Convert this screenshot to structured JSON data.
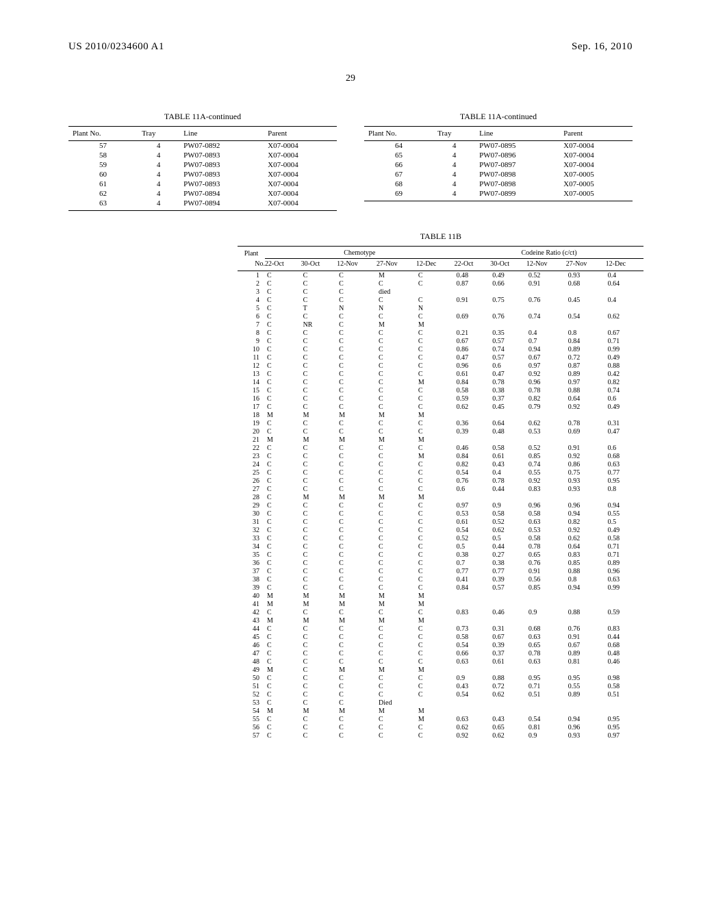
{
  "header": {
    "left": "US 2010/0234600 A1",
    "right": "Sep. 16, 2010"
  },
  "pageNumber": "29",
  "table11a": {
    "title": "TABLE 11A-continued",
    "columns": [
      "Plant No.",
      "Tray",
      "Line",
      "Parent"
    ],
    "left": [
      [
        "57",
        "4",
        "PW07-0892",
        "X07-0004"
      ],
      [
        "58",
        "4",
        "PW07-0893",
        "X07-0004"
      ],
      [
        "59",
        "4",
        "PW07-0893",
        "X07-0004"
      ],
      [
        "60",
        "4",
        "PW07-0893",
        "X07-0004"
      ],
      [
        "61",
        "4",
        "PW07-0893",
        "X07-0004"
      ],
      [
        "62",
        "4",
        "PW07-0894",
        "X07-0004"
      ],
      [
        "63",
        "4",
        "PW07-0894",
        "X07-0004"
      ]
    ],
    "right": [
      [
        "64",
        "4",
        "PW07-0895",
        "X07-0004"
      ],
      [
        "65",
        "4",
        "PW07-0896",
        "X07-0004"
      ],
      [
        "66",
        "4",
        "PW07-0897",
        "X07-0004"
      ],
      [
        "67",
        "4",
        "PW07-0898",
        "X07-0005"
      ],
      [
        "68",
        "4",
        "PW07-0898",
        "X07-0005"
      ],
      [
        "69",
        "4",
        "PW07-0899",
        "X07-0005"
      ]
    ]
  },
  "table11b": {
    "title": "TABLE 11B",
    "group1": "Chemotype",
    "group2": "Codeine Ratio (c/ct)",
    "cols": [
      "Plant No.",
      "22-Oct",
      "30-Oct",
      "12-Nov",
      "27-Nov",
      "12-Dec",
      "22-Oct",
      "30-Oct",
      "12-Nov",
      "27-Nov",
      "12-Dec"
    ],
    "rows": [
      [
        "1",
        "C",
        "C",
        "C",
        "M",
        "C",
        "0.48",
        "0.49",
        "0.52",
        "0.93",
        "0.4"
      ],
      [
        "2",
        "C",
        "C",
        "C",
        "C",
        "C",
        "0.87",
        "0.66",
        "0.91",
        "0.68",
        "0.64"
      ],
      [
        "3",
        "C",
        "C",
        "C",
        "died",
        "",
        "",
        "",
        "",
        "",
        ""
      ],
      [
        "4",
        "C",
        "C",
        "C",
        "C",
        "C",
        "0.91",
        "0.75",
        "0.76",
        "0.45",
        "0.4"
      ],
      [
        "5",
        "C",
        "T",
        "N",
        "N",
        "N",
        "",
        "",
        "",
        "",
        ""
      ],
      [
        "6",
        "C",
        "C",
        "C",
        "C",
        "C",
        "0.69",
        "0.76",
        "0.74",
        "0.54",
        "0.62"
      ],
      [
        "7",
        "C",
        "NR",
        "C",
        "M",
        "M",
        "",
        "",
        "",
        "",
        ""
      ],
      [
        "8",
        "C",
        "C",
        "C",
        "C",
        "C",
        "0.21",
        "0.35",
        "0.4",
        "0.8",
        "0.67"
      ],
      [
        "9",
        "C",
        "C",
        "C",
        "C",
        "C",
        "0.67",
        "0.57",
        "0.7",
        "0.84",
        "0.71"
      ],
      [
        "10",
        "C",
        "C",
        "C",
        "C",
        "C",
        "0.86",
        "0.74",
        "0.94",
        "0.89",
        "0.99"
      ],
      [
        "11",
        "C",
        "C",
        "C",
        "C",
        "C",
        "0.47",
        "0.57",
        "0.67",
        "0.72",
        "0.49"
      ],
      [
        "12",
        "C",
        "C",
        "C",
        "C",
        "C",
        "0.96",
        "0.6",
        "0.97",
        "0.87",
        "0.88"
      ],
      [
        "13",
        "C",
        "C",
        "C",
        "C",
        "C",
        "0.61",
        "0.47",
        "0.92",
        "0.89",
        "0.42"
      ],
      [
        "14",
        "C",
        "C",
        "C",
        "C",
        "M",
        "0.84",
        "0.78",
        "0.96",
        "0.97",
        "0.82"
      ],
      [
        "15",
        "C",
        "C",
        "C",
        "C",
        "C",
        "0.58",
        "0.38",
        "0.78",
        "0.88",
        "0.74"
      ],
      [
        "16",
        "C",
        "C",
        "C",
        "C",
        "C",
        "0.59",
        "0.37",
        "0.82",
        "0.64",
        "0.6"
      ],
      [
        "17",
        "C",
        "C",
        "C",
        "C",
        "C",
        "0.62",
        "0.45",
        "0.79",
        "0.92",
        "0.49"
      ],
      [
        "18",
        "M",
        "M",
        "M",
        "M",
        "M",
        "",
        "",
        "",
        "",
        ""
      ],
      [
        "19",
        "C",
        "C",
        "C",
        "C",
        "C",
        "0.36",
        "0.64",
        "0.62",
        "0.78",
        "0.31"
      ],
      [
        "20",
        "C",
        "C",
        "C",
        "C",
        "C",
        "0.39",
        "0.48",
        "0.53",
        "0.69",
        "0.47"
      ],
      [
        "21",
        "M",
        "M",
        "M",
        "M",
        "M",
        "",
        "",
        "",
        "",
        ""
      ],
      [
        "22",
        "C",
        "C",
        "C",
        "C",
        "C",
        "0.46",
        "0.58",
        "0.52",
        "0.91",
        "0.6"
      ],
      [
        "23",
        "C",
        "C",
        "C",
        "C",
        "M",
        "0.84",
        "0.61",
        "0.85",
        "0.92",
        "0.68"
      ],
      [
        "24",
        "C",
        "C",
        "C",
        "C",
        "C",
        "0.82",
        "0.43",
        "0.74",
        "0.86",
        "0.63"
      ],
      [
        "25",
        "C",
        "C",
        "C",
        "C",
        "C",
        "0.54",
        "0.4",
        "0.55",
        "0.75",
        "0.77"
      ],
      [
        "26",
        "C",
        "C",
        "C",
        "C",
        "C",
        "0.76",
        "0.78",
        "0.92",
        "0.93",
        "0.95"
      ],
      [
        "27",
        "C",
        "C",
        "C",
        "C",
        "C",
        "0.6",
        "0.44",
        "0.83",
        "0.93",
        "0.8"
      ],
      [
        "28",
        "C",
        "M",
        "M",
        "M",
        "M",
        "",
        "",
        "",
        "",
        ""
      ],
      [
        "29",
        "C",
        "C",
        "C",
        "C",
        "C",
        "0.97",
        "0.9",
        "0.96",
        "0.96",
        "0.94"
      ],
      [
        "30",
        "C",
        "C",
        "C",
        "C",
        "C",
        "0.53",
        "0.58",
        "0.58",
        "0.94",
        "0.55"
      ],
      [
        "31",
        "C",
        "C",
        "C",
        "C",
        "C",
        "0.61",
        "0.52",
        "0.63",
        "0.82",
        "0.5"
      ],
      [
        "32",
        "C",
        "C",
        "C",
        "C",
        "C",
        "0.54",
        "0.62",
        "0.53",
        "0.92",
        "0.49"
      ],
      [
        "33",
        "C",
        "C",
        "C",
        "C",
        "C",
        "0.52",
        "0.5",
        "0.58",
        "0.62",
        "0.58"
      ],
      [
        "34",
        "C",
        "C",
        "C",
        "C",
        "C",
        "0.5",
        "0.44",
        "0.78",
        "0.64",
        "0.71"
      ],
      [
        "35",
        "C",
        "C",
        "C",
        "C",
        "C",
        "0.38",
        "0.27",
        "0.65",
        "0.83",
        "0.71"
      ],
      [
        "36",
        "C",
        "C",
        "C",
        "C",
        "C",
        "0.7",
        "0.38",
        "0.76",
        "0.85",
        "0.89"
      ],
      [
        "37",
        "C",
        "C",
        "C",
        "C",
        "C",
        "0.77",
        "0.77",
        "0.91",
        "0.88",
        "0.96"
      ],
      [
        "38",
        "C",
        "C",
        "C",
        "C",
        "C",
        "0.41",
        "0.39",
        "0.56",
        "0.8",
        "0.63"
      ],
      [
        "39",
        "C",
        "C",
        "C",
        "C",
        "C",
        "0.84",
        "0.57",
        "0.85",
        "0.94",
        "0.99"
      ],
      [
        "40",
        "M",
        "M",
        "M",
        "M",
        "M",
        "",
        "",
        "",
        "",
        ""
      ],
      [
        "41",
        "M",
        "M",
        "M",
        "M",
        "M",
        "",
        "",
        "",
        "",
        ""
      ],
      [
        "42",
        "C",
        "C",
        "C",
        "C",
        "C",
        "0.83",
        "0.46",
        "0.9",
        "0.88",
        "0.59"
      ],
      [
        "43",
        "M",
        "M",
        "M",
        "M",
        "M",
        "",
        "",
        "",
        "",
        ""
      ],
      [
        "44",
        "C",
        "C",
        "C",
        "C",
        "C",
        "0.73",
        "0.31",
        "0.68",
        "0.76",
        "0.83"
      ],
      [
        "45",
        "C",
        "C",
        "C",
        "C",
        "C",
        "0.58",
        "0.67",
        "0.63",
        "0.91",
        "0.44"
      ],
      [
        "46",
        "C",
        "C",
        "C",
        "C",
        "C",
        "0.54",
        "0.39",
        "0.65",
        "0.67",
        "0.68"
      ],
      [
        "47",
        "C",
        "C",
        "C",
        "C",
        "C",
        "0.66",
        "0.37",
        "0.78",
        "0.89",
        "0.48"
      ],
      [
        "48",
        "C",
        "C",
        "C",
        "C",
        "C",
        "0.63",
        "0.61",
        "0.63",
        "0.81",
        "0.46"
      ],
      [
        "49",
        "M",
        "C",
        "M",
        "M",
        "M",
        "",
        "",
        "",
        "",
        ""
      ],
      [
        "50",
        "C",
        "C",
        "C",
        "C",
        "C",
        "0.9",
        "0.88",
        "0.95",
        "0.95",
        "0.98"
      ],
      [
        "51",
        "C",
        "C",
        "C",
        "C",
        "C",
        "0.43",
        "0.72",
        "0.71",
        "0.55",
        "0.58"
      ],
      [
        "52",
        "C",
        "C",
        "C",
        "C",
        "C",
        "0.54",
        "0.62",
        "0.51",
        "0.89",
        "0.51"
      ],
      [
        "53",
        "C",
        "C",
        "C",
        "Died",
        "",
        "",
        "",
        "",
        "",
        ""
      ],
      [
        "54",
        "M",
        "M",
        "M",
        "M",
        "M",
        "",
        "",
        "",
        "",
        ""
      ],
      [
        "55",
        "C",
        "C",
        "C",
        "C",
        "M",
        "0.63",
        "0.43",
        "0.54",
        "0.94",
        "0.95"
      ],
      [
        "56",
        "C",
        "C",
        "C",
        "C",
        "C",
        "0.62",
        "0.65",
        "0.81",
        "0.96",
        "0.95"
      ],
      [
        "57",
        "C",
        "C",
        "C",
        "C",
        "C",
        "0.92",
        "0.62",
        "0.9",
        "0.93",
        "0.97"
      ]
    ]
  }
}
